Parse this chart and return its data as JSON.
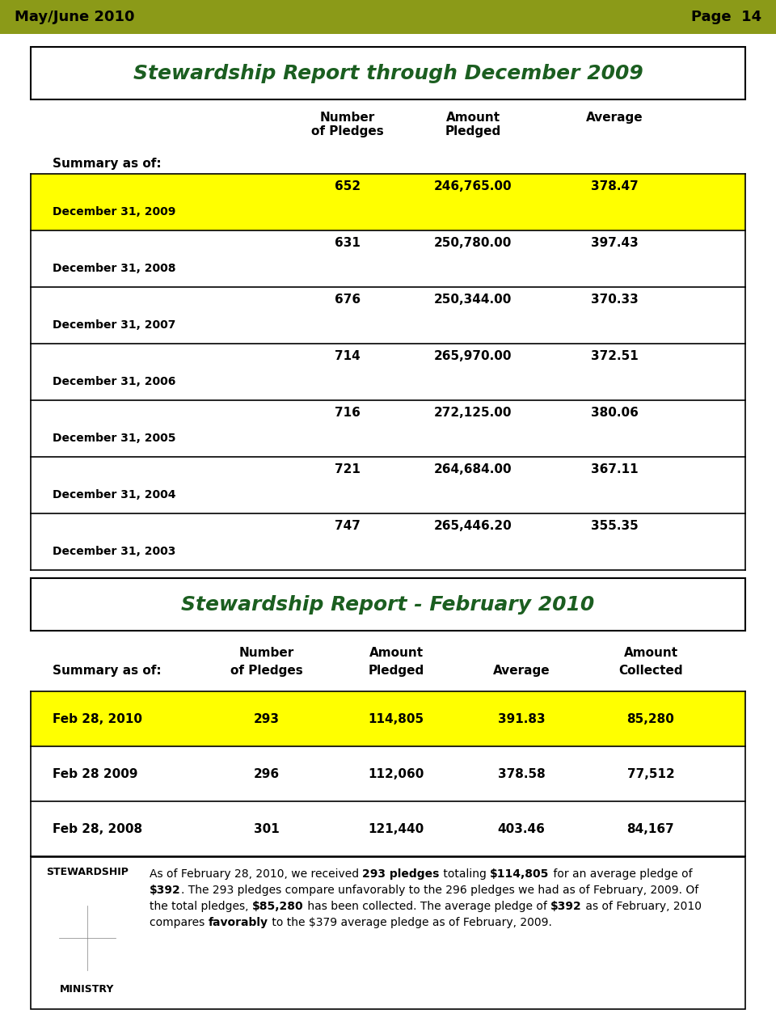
{
  "header_bg": "#8B9A18",
  "header_text_left": "May/June 2010",
  "header_text_right": "Page  14",
  "page_bg": "#FFFFFF",
  "title1": "Stewardship Report through December 2009",
  "title1_color": "#1B5E20",
  "table1_rows": [
    {
      "label": "December 31, 2009",
      "values": [
        "652",
        "246,765.00",
        "378.47"
      ],
      "highlight": true
    },
    {
      "label": "December 31, 2008",
      "values": [
        "631",
        "250,780.00",
        "397.43"
      ],
      "highlight": false
    },
    {
      "label": "December 31, 2007",
      "values": [
        "676",
        "250,344.00",
        "370.33"
      ],
      "highlight": false
    },
    {
      "label": "December 31, 2006",
      "values": [
        "714",
        "265,970.00",
        "372.51"
      ],
      "highlight": false
    },
    {
      "label": "December 31, 2005",
      "values": [
        "716",
        "272,125.00",
        "380.06"
      ],
      "highlight": false
    },
    {
      "label": "December 31, 2004",
      "values": [
        "721",
        "264,684.00",
        "367.11"
      ],
      "highlight": false
    },
    {
      "label": "December 31, 2003",
      "values": [
        "747",
        "265,446.20",
        "355.35"
      ],
      "highlight": false
    }
  ],
  "highlight_color": "#FFFF00",
  "title2": "Stewardship Report - February 2010",
  "title2_color": "#1B5E20",
  "table2_rows": [
    {
      "label": "Feb 28, 2010",
      "values": [
        "293",
        "114,805",
        "391.83",
        "85,280"
      ],
      "highlight": true
    },
    {
      "label": "Feb 28 2009",
      "values": [
        "296",
        "112,060",
        "378.58",
        "77,512"
      ],
      "highlight": false
    },
    {
      "label": "Feb 28, 2008",
      "values": [
        "301",
        "121,440",
        "403.46",
        "84,167"
      ],
      "highlight": false
    }
  ],
  "stewardship_label": "STEWARDSHIP",
  "ministry_label": "MINISTRY",
  "footer_lines": [
    [
      [
        "As of February 28, 2010, we received ",
        false
      ],
      [
        "293 pledges",
        true
      ],
      [
        " totaling ",
        false
      ],
      [
        "$114,805",
        true
      ],
      [
        " for an average pledge of",
        false
      ]
    ],
    [
      [
        "$392",
        true
      ],
      [
        ". The 293 pledges compare unfavorably to the 296 pledges we had as of February, 2009. Of",
        false
      ]
    ],
    [
      [
        "the total pledges, ",
        false
      ],
      [
        "$85,280",
        true
      ],
      [
        " has been collected. The average pledge of ",
        false
      ],
      [
        "$392",
        true
      ],
      [
        " as of February, 2010",
        false
      ]
    ],
    [
      [
        "compares ",
        false
      ],
      [
        "favorably",
        true
      ],
      [
        " to the $379 average pledge as of February, 2009.",
        false
      ]
    ]
  ]
}
